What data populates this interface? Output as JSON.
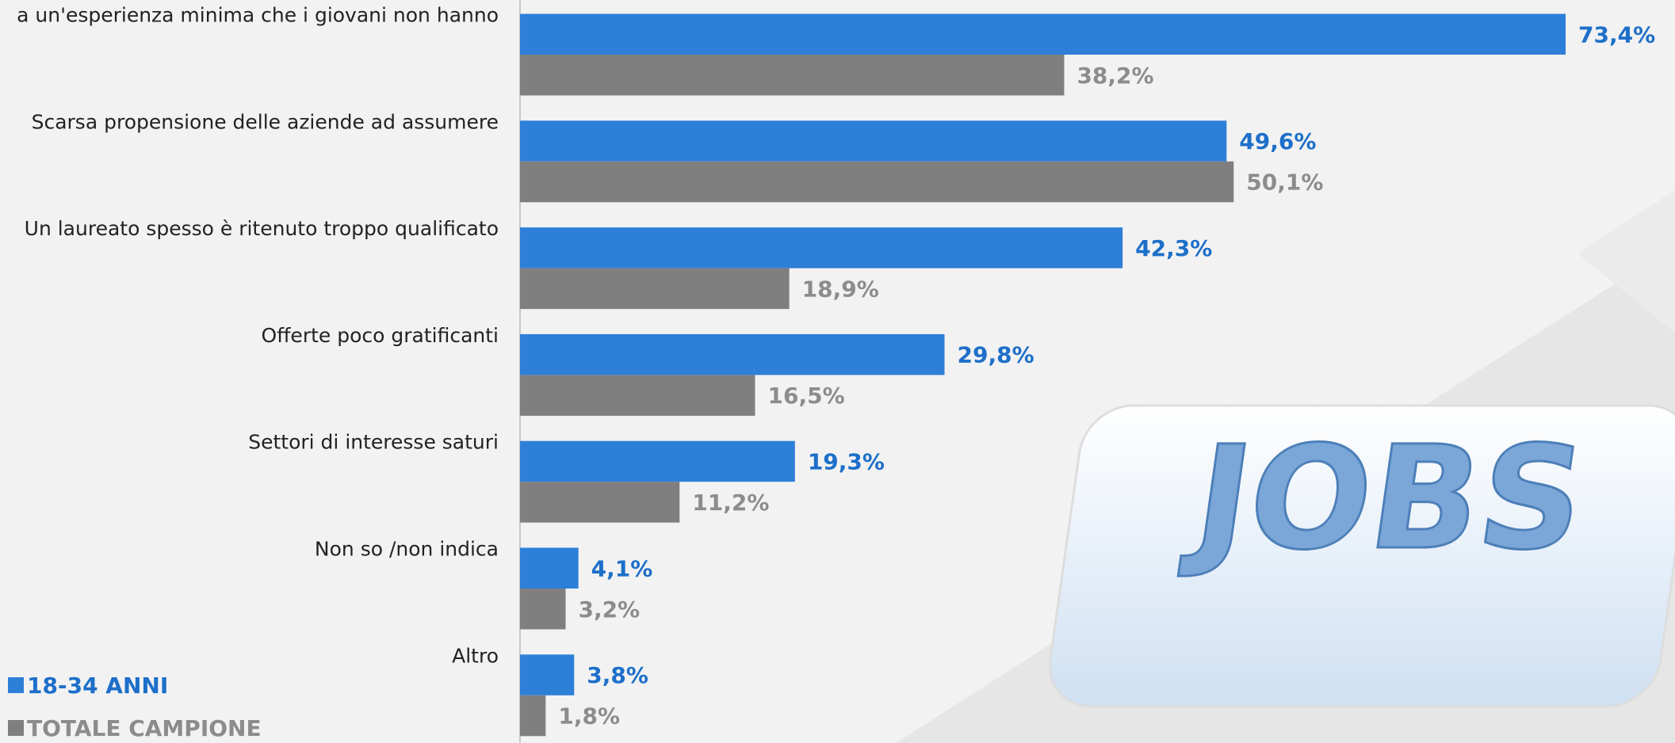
{
  "chart_data": {
    "type": "hbar",
    "categories": [
      "a un'esperienza minima che i giovani non hanno",
      "Scarsa propensione delle aziende ad assumere",
      "Un laureato spesso è ritenuto troppo qualificato",
      "Offerte poco gratificanti",
      "Settori di interesse saturi",
      "Non so /non indica",
      "Altro"
    ],
    "series": [
      {
        "name": "18-34 ANNI",
        "color": "#2e7fd8",
        "label_color": "#1d6fc9",
        "values": [
          73.4,
          49.6,
          42.3,
          29.8,
          19.3,
          4.1,
          3.8
        ],
        "value_labels": [
          "73,4%",
          "49,6%",
          "42,3%",
          "29,8%",
          "19,3%",
          "4,1%",
          "3,8%"
        ]
      },
      {
        "name": "TOTALE CAMPIONE",
        "color": "#7f7f7f",
        "label_color": "#8c8c8c",
        "values": [
          38.2,
          50.1,
          18.9,
          16.5,
          11.2,
          3.2,
          1.8
        ],
        "value_labels": [
          "38,2%",
          "50,1%",
          "18,9%",
          "16,5%",
          "11,2%",
          "3,2%",
          "1,8%"
        ]
      }
    ]
  },
  "image_text": "JOBS"
}
